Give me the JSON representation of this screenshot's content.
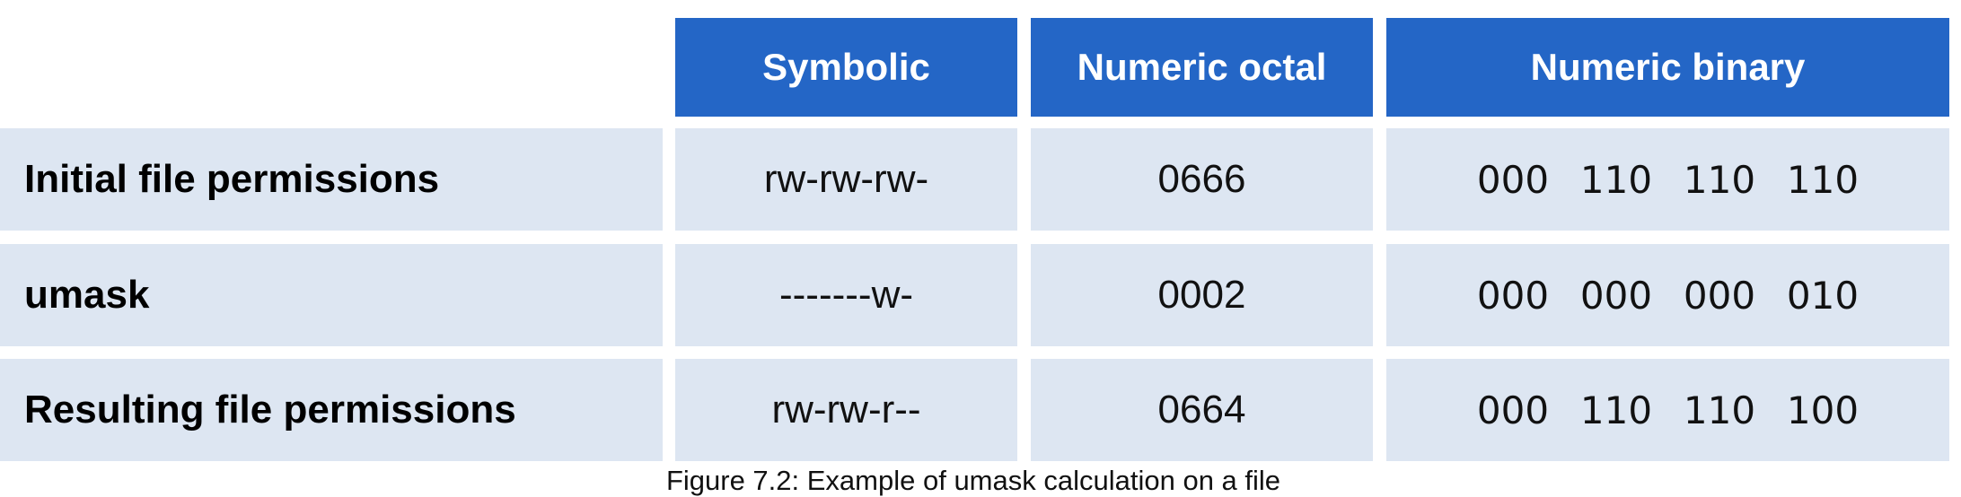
{
  "table": {
    "headers": [
      "Symbolic",
      "Numeric octal",
      "Numeric binary"
    ],
    "rows": [
      {
        "label": "Initial file permissions",
        "symbolic": "rw-rw-rw-",
        "octal": "0666",
        "binary": [
          "000",
          "110",
          "110",
          "110"
        ]
      },
      {
        "label": "umask",
        "symbolic": "-------w-",
        "octal": "0002",
        "binary": [
          "000",
          "000",
          "000",
          "010"
        ]
      },
      {
        "label": "Resulting file permissions",
        "symbolic": "rw-rw-r--",
        "octal": "0664",
        "binary": [
          "000",
          "110",
          "110",
          "100"
        ]
      }
    ]
  },
  "caption": "Figure 7.2: Example of umask calculation on a file",
  "colors": {
    "header_bg": "#2466c6",
    "cell_bg": "#dde6f2"
  }
}
